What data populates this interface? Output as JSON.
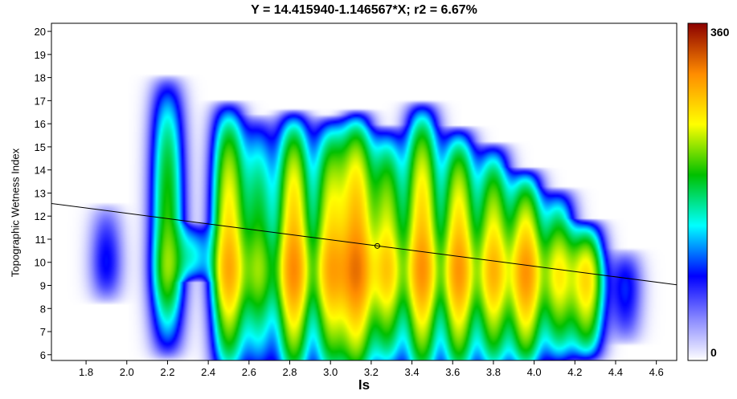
{
  "chart_data": {
    "type": "heatmap",
    "title": "Y = 14.415940-1.146567*X; r2 = 6.67%",
    "xlabel": "ls",
    "ylabel": "Topographic Wetness Index",
    "xlim": [
      1.63,
      4.7
    ],
    "ylim": [
      5.75,
      20.35
    ],
    "x_ticks": [
      "1.8",
      "2.0",
      "2.2",
      "2.4",
      "2.6",
      "2.8",
      "3.0",
      "3.2",
      "3.4",
      "3.6",
      "3.8",
      "4.0",
      "4.2",
      "4.4",
      "4.6"
    ],
    "y_ticks": [
      "6",
      "7",
      "8",
      "9",
      "10",
      "11",
      "12",
      "13",
      "14",
      "15",
      "16",
      "17",
      "18",
      "19",
      "20"
    ],
    "colorbar": {
      "min": 0,
      "max": 360,
      "min_label": "0",
      "max_label": "360"
    },
    "regression": {
      "intercept": 14.41594,
      "slope": -1.146567,
      "r2_percent": 6.67,
      "mean_point": [
        3.23,
        10.71
      ]
    },
    "density_columns": [
      {
        "x": 1.9,
        "y_min": 8.8,
        "y_max": 13.0,
        "peak": 0.14
      },
      {
        "x": 2.2,
        "y_min": 7.5,
        "y_max": 19.3,
        "peak": 0.5
      },
      {
        "x": 2.33,
        "y_min": 9.5,
        "y_max": 12.0,
        "peak": 0.22
      },
      {
        "x": 2.5,
        "y_min": 6.5,
        "y_max": 18.2,
        "peak": 0.78
      },
      {
        "x": 2.65,
        "y_min": 6.5,
        "y_max": 17.5,
        "peak": 0.45
      },
      {
        "x": 2.82,
        "y_min": 6.2,
        "y_max": 17.8,
        "peak": 0.88
      },
      {
        "x": 3.0,
        "y_min": 6.2,
        "y_max": 17.5,
        "peak": 0.74
      },
      {
        "x": 3.13,
        "y_min": 6.2,
        "y_max": 17.8,
        "peak": 0.92
      },
      {
        "x": 3.28,
        "y_min": 6.5,
        "y_max": 17.0,
        "peak": 0.66
      },
      {
        "x": 3.45,
        "y_min": 6.2,
        "y_max": 18.2,
        "peak": 0.86
      },
      {
        "x": 3.63,
        "y_min": 6.2,
        "y_max": 17.0,
        "peak": 0.83
      },
      {
        "x": 3.8,
        "y_min": 6.3,
        "y_max": 16.2,
        "peak": 0.72
      },
      {
        "x": 3.96,
        "y_min": 6.3,
        "y_max": 15.0,
        "peak": 0.82
      },
      {
        "x": 4.12,
        "y_min": 6.5,
        "y_max": 14.0,
        "peak": 0.55
      },
      {
        "x": 4.26,
        "y_min": 6.5,
        "y_max": 12.5,
        "peak": 0.62
      },
      {
        "x": 4.45,
        "y_min": 7.0,
        "y_max": 11.0,
        "peak": 0.15
      }
    ],
    "grid": false,
    "legend": "colorbar-right"
  }
}
